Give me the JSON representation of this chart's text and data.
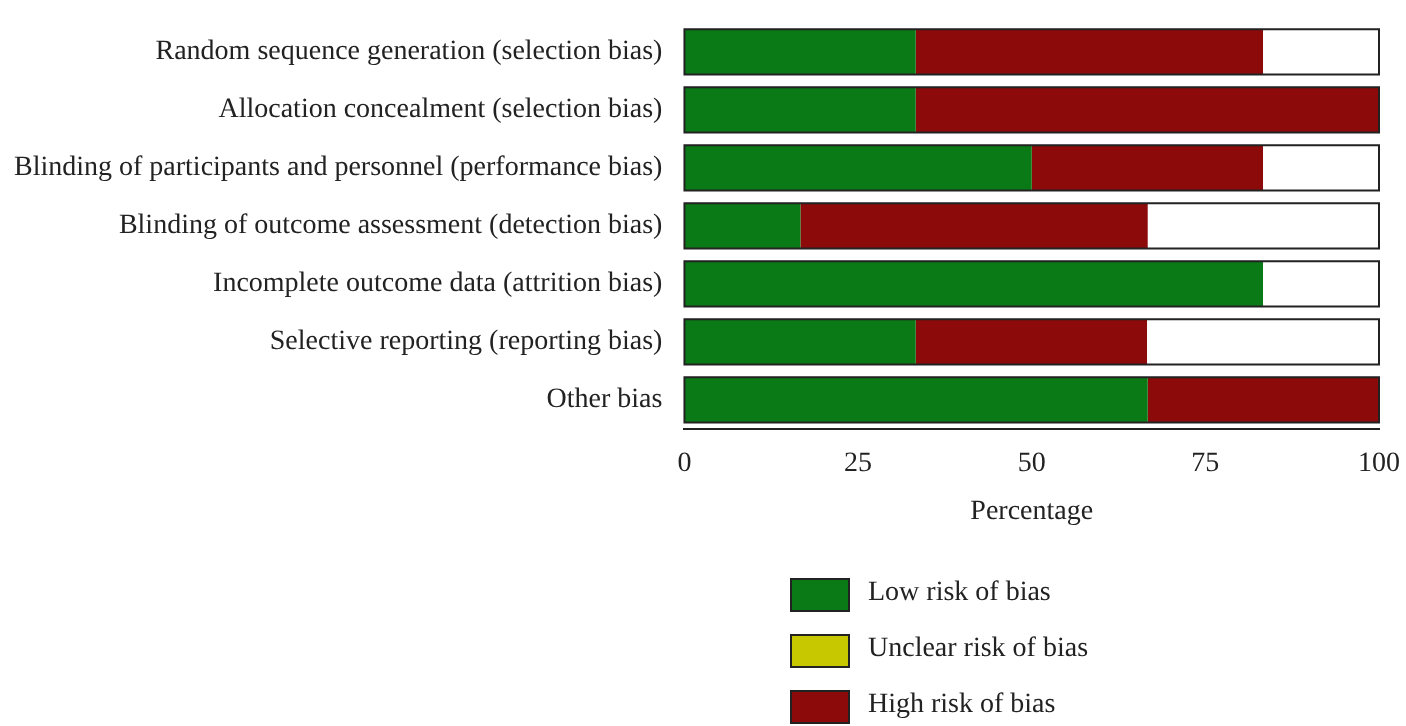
{
  "chart_data": {
    "type": "bar",
    "orientation": "horizontal",
    "stacked": true,
    "xlabel": "Percentage",
    "categories": [
      "Random sequence generation (selection bias)",
      "Allocation concealment (selection bias)",
      "Blinding of participants and personnel (performance bias)",
      "Blinding of outcome assessment (detection bias)",
      "Incomplete outcome data (attrition bias)",
      "Selective reporting (reporting bias)",
      "Other bias"
    ],
    "series": [
      {
        "name": "Low risk of bias",
        "color": "#0a7a16",
        "values": [
          33.3,
          33.3,
          50,
          16.7,
          83.3,
          33.3,
          66.7
        ]
      },
      {
        "name": "Unclear risk of bias",
        "color": "#c8c800",
        "values": [
          0,
          0,
          0,
          0,
          0,
          0,
          0
        ]
      },
      {
        "name": "High risk of bias",
        "color": "#8c0a0a",
        "values": [
          50,
          66.7,
          33.3,
          50,
          0,
          33.3,
          33.3
        ]
      }
    ],
    "xlim": [
      0,
      100
    ],
    "xticks": [
      0,
      25,
      50,
      75,
      100
    ],
    "grid": false,
    "legend": "bottom"
  }
}
